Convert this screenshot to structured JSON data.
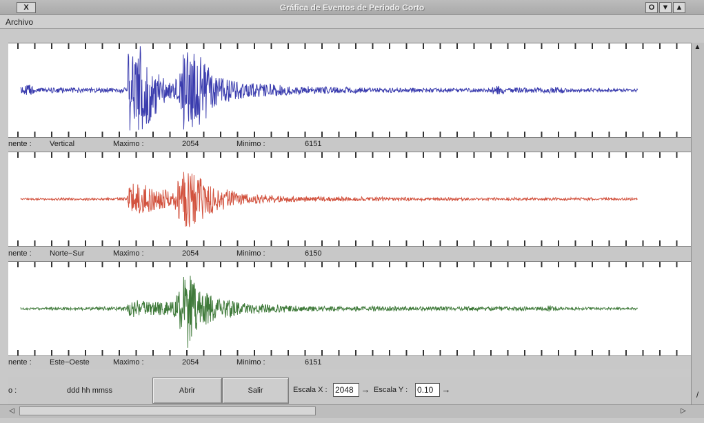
{
  "window": {
    "title": "Gráfica de Eventos de Periodo Corto",
    "close_label": "X",
    "o_label": "O",
    "min_label": "▼",
    "max_label": "▲"
  },
  "menu": {
    "items": [
      "Archivo"
    ]
  },
  "channels": [
    {
      "component_label": "nente :",
      "component": "Vertical",
      "max_label": "Maximo :",
      "max": "2054",
      "min_label": "Minimo :",
      "min": "6151",
      "color": "#3a3cae"
    },
    {
      "component_label": "nente :",
      "component": "Norte−Sur",
      "max_label": "Maximo :",
      "max": "2054",
      "min_label": "Minimo :",
      "min": "6150",
      "color": "#d2523e"
    },
    {
      "component_label": "nente :",
      "component": "Este−Oeste",
      "max_label": "Maximo :",
      "max": "2054",
      "min_label": "Minimo :",
      "min": "6151",
      "color": "#3f7a3a"
    }
  ],
  "controls": {
    "time_label": "o :",
    "time_format": "ddd hh mmss",
    "open_button": "Abrir",
    "exit_button": "Salir",
    "scale_x_label": "Escala X :",
    "scale_x_value": "2048",
    "scale_y_label": "Escala Y :",
    "scale_y_value": "0.10",
    "spin_icon": "→"
  },
  "scrollbars": {
    "up_arrow": "▲",
    "down_arrow": "/",
    "left_arrow": "◁",
    "right_arrow": "▷"
  }
}
